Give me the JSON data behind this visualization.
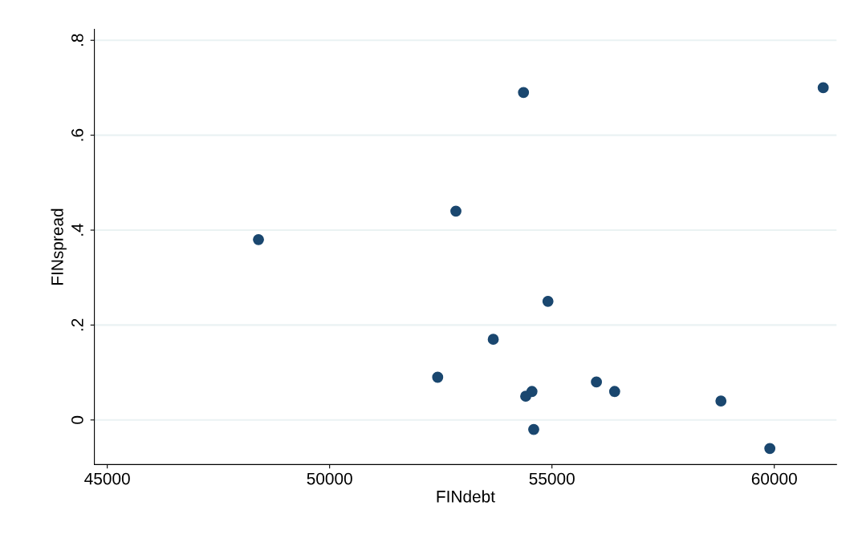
{
  "chart_data": {
    "type": "scatter",
    "xlabel": "FINdebt",
    "ylabel": "FINspread",
    "x": [
      48400,
      52840,
      54360,
      61100,
      52430,
      53680,
      54410,
      54550,
      54590,
      54910,
      56000,
      56410,
      58800,
      59900
    ],
    "series": [
      {
        "color": "#1a476f",
        "values": [
          0.38,
          0.44,
          0.69,
          0.7,
          0.09,
          0.17,
          0.05,
          0.06,
          -0.02,
          0.25,
          0.08,
          0.06,
          0.04,
          -0.06
        ]
      }
    ],
    "xlim": [
      44710,
      61400
    ],
    "ylim": [
      -0.094,
      0.823
    ],
    "xticks": [
      45000,
      50000,
      55000,
      60000
    ],
    "yticks": [
      0,
      {
        "value": 0.2,
        "label": ".2"
      },
      {
        "value": 0.4,
        "label": ".4"
      },
      {
        "value": 0.6,
        "label": ".6"
      },
      {
        "value": 0.8,
        "label": ".8"
      }
    ],
    "grid": "y",
    "marker": "circle"
  }
}
